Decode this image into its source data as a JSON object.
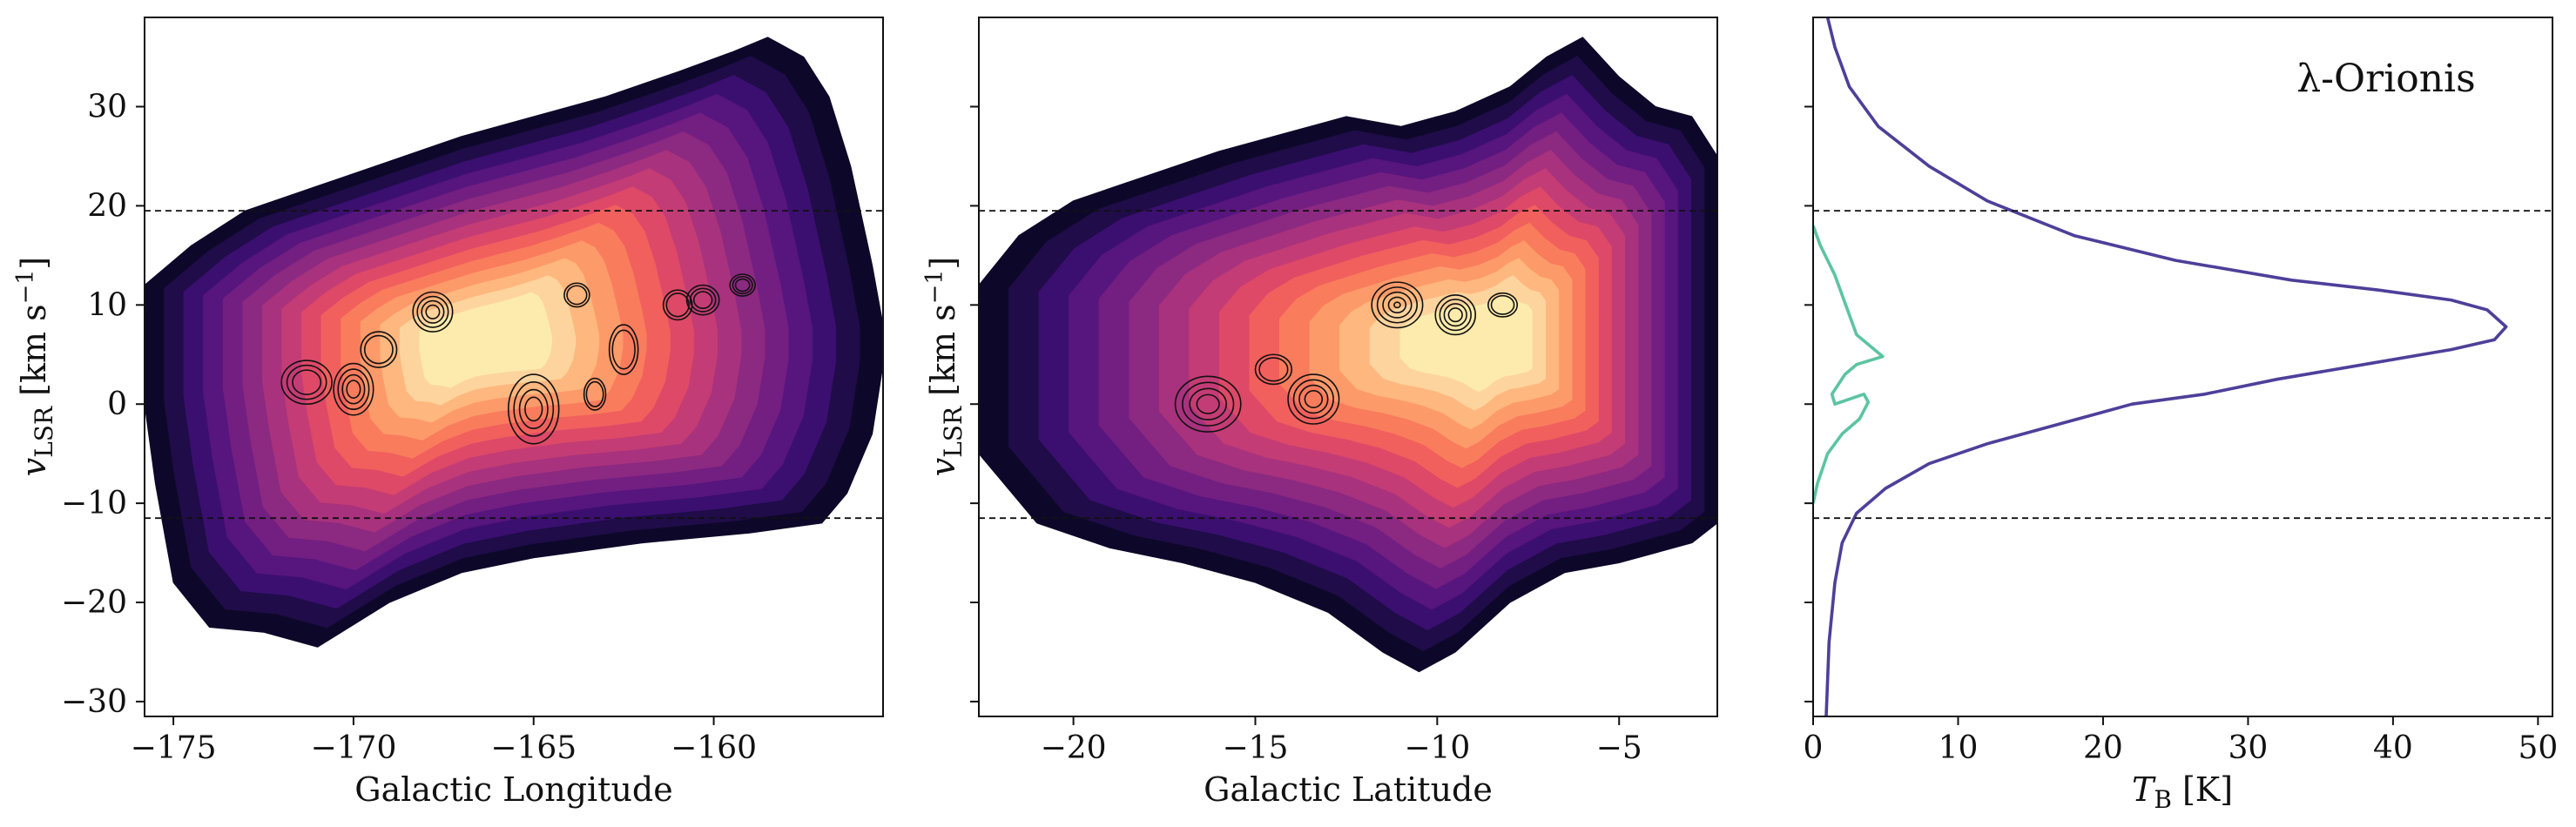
{
  "figure": {
    "title": "",
    "annotation": "λ-Orionis",
    "colors": {
      "colormap": [
        "#0d0829",
        "#1f0c48",
        "#3b0f70",
        "#57157e",
        "#721f81",
        "#8c2981",
        "#a8327d",
        "#c43c75",
        "#de4968",
        "#f1605d",
        "#f97c5d",
        "#fd9a6a",
        "#feb77e",
        "#fdd49e",
        "#fcebac"
      ],
      "contour": "#111111",
      "line_purple": "#4e3f9a",
      "line_teal": "#5cc4a0",
      "dashed": "#111111"
    }
  },
  "chart_data": [
    {
      "type": "heatmap",
      "panel": "Galactic Longitude",
      "xlabel": "Galactic Longitude",
      "ylabel_main": "v",
      "ylabel_sub": "LSR",
      "ylabel_unit": " [km s",
      "ylabel_exp": "−1",
      "ylabel_end": "]",
      "xlim": [
        -175.8,
        -155.3
      ],
      "ylim": [
        -31.5,
        39
      ],
      "xticks": [
        -175,
        -170,
        -165,
        -160
      ],
      "xtick_labels": [
        "−175",
        "−170",
        "−165",
        "−160"
      ],
      "yticks": [
        -30,
        -20,
        -10,
        0,
        10,
        20,
        30
      ],
      "ytick_labels": [
        "−30",
        "−20",
        "−10",
        "0",
        "10",
        "20",
        "30"
      ],
      "hlines": [
        19.5,
        -11.5
      ],
      "envelope_top": [
        [
          -175.8,
          12
        ],
        [
          -174.5,
          16
        ],
        [
          -173,
          19.5
        ],
        [
          -171,
          22
        ],
        [
          -169,
          24.5
        ],
        [
          -167,
          27
        ],
        [
          -165,
          29
        ],
        [
          -163,
          31
        ],
        [
          -161,
          33.5
        ],
        [
          -159.5,
          35.5
        ],
        [
          -158.5,
          37
        ],
        [
          -157.5,
          35
        ],
        [
          -156.8,
          31
        ],
        [
          -156.2,
          24
        ],
        [
          -155.6,
          14
        ],
        [
          -155.3,
          8
        ]
      ],
      "envelope_bottom": [
        [
          -155.3,
          4
        ],
        [
          -155.6,
          -3
        ],
        [
          -156.3,
          -9
        ],
        [
          -157,
          -12
        ],
        [
          -159,
          -13
        ],
        [
          -162,
          -14
        ],
        [
          -165,
          -15.5
        ],
        [
          -167,
          -17
        ],
        [
          -169,
          -20
        ],
        [
          -171,
          -24.5
        ],
        [
          -172.5,
          -23
        ],
        [
          -174,
          -22.5
        ],
        [
          -175,
          -18
        ],
        [
          -175.5,
          -8
        ],
        [
          -175.8,
          0
        ]
      ],
      "peak_x": -166.5,
      "peak_v": 6.5,
      "contours": [
        {
          "x": -167.8,
          "y": 9.3,
          "rx": 0.55,
          "ry": 2.0,
          "n": 4
        },
        {
          "x": -171.3,
          "y": 2.2,
          "rx": 0.7,
          "ry": 2.2,
          "n": 3
        },
        {
          "x": -170.0,
          "y": 1.5,
          "rx": 0.55,
          "ry": 2.6,
          "n": 4
        },
        {
          "x": -169.3,
          "y": 5.5,
          "rx": 0.5,
          "ry": 1.8,
          "n": 2
        },
        {
          "x": -165.0,
          "y": -0.5,
          "rx": 0.7,
          "ry": 3.5,
          "n": 4
        },
        {
          "x": -163.3,
          "y": 1.0,
          "rx": 0.3,
          "ry": 1.6,
          "n": 2
        },
        {
          "x": -162.5,
          "y": 5.5,
          "rx": 0.4,
          "ry": 2.5,
          "n": 2
        },
        {
          "x": -161.0,
          "y": 10.0,
          "rx": 0.4,
          "ry": 1.5,
          "n": 2
        },
        {
          "x": -160.3,
          "y": 10.5,
          "rx": 0.45,
          "ry": 1.5,
          "n": 3
        },
        {
          "x": -159.2,
          "y": 12.0,
          "rx": 0.35,
          "ry": 1.1,
          "n": 3
        },
        {
          "x": -163.8,
          "y": 11.0,
          "rx": 0.35,
          "ry": 1.2,
          "n": 2
        }
      ]
    },
    {
      "type": "heatmap",
      "panel": "Galactic Latitude",
      "xlabel": "Galactic Latitude",
      "ylabel_main": "v",
      "ylabel_sub": "LSR",
      "ylabel_unit": " [km s",
      "ylabel_exp": "−1",
      "ylabel_end": "]",
      "xlim": [
        -22.6,
        -2.3
      ],
      "ylim": [
        -31.5,
        39
      ],
      "xticks": [
        -20,
        -15,
        -10,
        -5
      ],
      "xtick_labels": [
        "−20",
        "−15",
        "−10",
        "−5"
      ],
      "yticks": [
        -30,
        -20,
        -10,
        0,
        10,
        20,
        30
      ],
      "hlines": [
        19.5,
        -11.5
      ],
      "envelope_top": [
        [
          -22.6,
          12
        ],
        [
          -21.5,
          17
        ],
        [
          -20,
          20.5
        ],
        [
          -18,
          23
        ],
        [
          -16,
          25.5
        ],
        [
          -14,
          27.5
        ],
        [
          -12.5,
          29
        ],
        [
          -11,
          28
        ],
        [
          -9.5,
          29.5
        ],
        [
          -8,
          32
        ],
        [
          -7,
          35
        ],
        [
          -6,
          37
        ],
        [
          -5,
          33
        ],
        [
          -4,
          30
        ],
        [
          -3,
          29
        ],
        [
          -2.3,
          25
        ]
      ],
      "envelope_bottom": [
        [
          -2.3,
          -12
        ],
        [
          -3,
          -14
        ],
        [
          -4,
          -15
        ],
        [
          -5,
          -16
        ],
        [
          -6.5,
          -17
        ],
        [
          -8,
          -20
        ],
        [
          -9.5,
          -25
        ],
        [
          -10.5,
          -27
        ],
        [
          -11.5,
          -25
        ],
        [
          -13,
          -21
        ],
        [
          -15,
          -18
        ],
        [
          -17,
          -16
        ],
        [
          -19,
          -14.5
        ],
        [
          -21,
          -12
        ],
        [
          -22.6,
          -5
        ]
      ],
      "peak_x": -8.5,
      "peak_v": 6.5,
      "contours": [
        {
          "x": -11.1,
          "y": 10.0,
          "rx": 0.7,
          "ry": 2.3,
          "n": 5
        },
        {
          "x": -9.5,
          "y": 9.0,
          "rx": 0.55,
          "ry": 2.0,
          "n": 4
        },
        {
          "x": -16.3,
          "y": 0.0,
          "rx": 0.9,
          "ry": 2.8,
          "n": 4
        },
        {
          "x": -13.4,
          "y": 0.5,
          "rx": 0.7,
          "ry": 2.5,
          "n": 4
        },
        {
          "x": -14.5,
          "y": 3.5,
          "rx": 0.5,
          "ry": 1.5,
          "n": 2
        },
        {
          "x": -8.2,
          "y": 10.0,
          "rx": 0.4,
          "ry": 1.2,
          "n": 2
        }
      ]
    },
    {
      "type": "line",
      "panel": "spectrum",
      "xlabel_main": "T",
      "xlabel_sub": "B",
      "xlabel_end": " [K]",
      "xlim": [
        0,
        51
      ],
      "ylim": [
        -31.5,
        39
      ],
      "xticks": [
        0,
        10,
        20,
        30,
        40,
        50
      ],
      "xtick_labels": [
        "0",
        "10",
        "20",
        "30",
        "40",
        "50"
      ],
      "yticks": [
        -30,
        -20,
        -10,
        0,
        10,
        20,
        30
      ],
      "hlines": [
        19.5,
        -11.5
      ],
      "series": [
        {
          "color": "purple",
          "points": [
            [
              1.0,
              39
            ],
            [
              1.5,
              36
            ],
            [
              2.5,
              32
            ],
            [
              4.5,
              28
            ],
            [
              8,
              24
            ],
            [
              12,
              20.5
            ],
            [
              18,
              17
            ],
            [
              25,
              14.5
            ],
            [
              33,
              12.5
            ],
            [
              39,
              11.5
            ],
            [
              44,
              10.5
            ],
            [
              46.5,
              9.5
            ],
            [
              47.8,
              7.8
            ],
            [
              47,
              6.5
            ],
            [
              44,
              5.5
            ],
            [
              38,
              4.0
            ],
            [
              32,
              2.5
            ],
            [
              27,
              1.0
            ],
            [
              22,
              0.0
            ],
            [
              17,
              -2.0
            ],
            [
              12,
              -4.0
            ],
            [
              8,
              -6.0
            ],
            [
              5,
              -8.5
            ],
            [
              3,
              -11.0
            ],
            [
              2,
              -14.0
            ],
            [
              1.5,
              -18.0
            ],
            [
              1.1,
              -24.0
            ],
            [
              0.9,
              -31.5
            ]
          ]
        },
        {
          "color": "teal",
          "points": [
            [
              0,
              18
            ],
            [
              0.5,
              16
            ],
            [
              1.5,
              13
            ],
            [
              2.5,
              9
            ],
            [
              3,
              7
            ],
            [
              4.8,
              4.8
            ],
            [
              3.0,
              4.0
            ],
            [
              2.2,
              3.0
            ],
            [
              1.3,
              1.0
            ],
            [
              1.5,
              0
            ],
            [
              3.5,
              1.0
            ],
            [
              3.8,
              0.2
            ],
            [
              3.2,
              -1.5
            ],
            [
              2.0,
              -3.0
            ],
            [
              1.0,
              -5.0
            ],
            [
              0.3,
              -8.0
            ],
            [
              0,
              -10
            ]
          ]
        }
      ]
    }
  ]
}
